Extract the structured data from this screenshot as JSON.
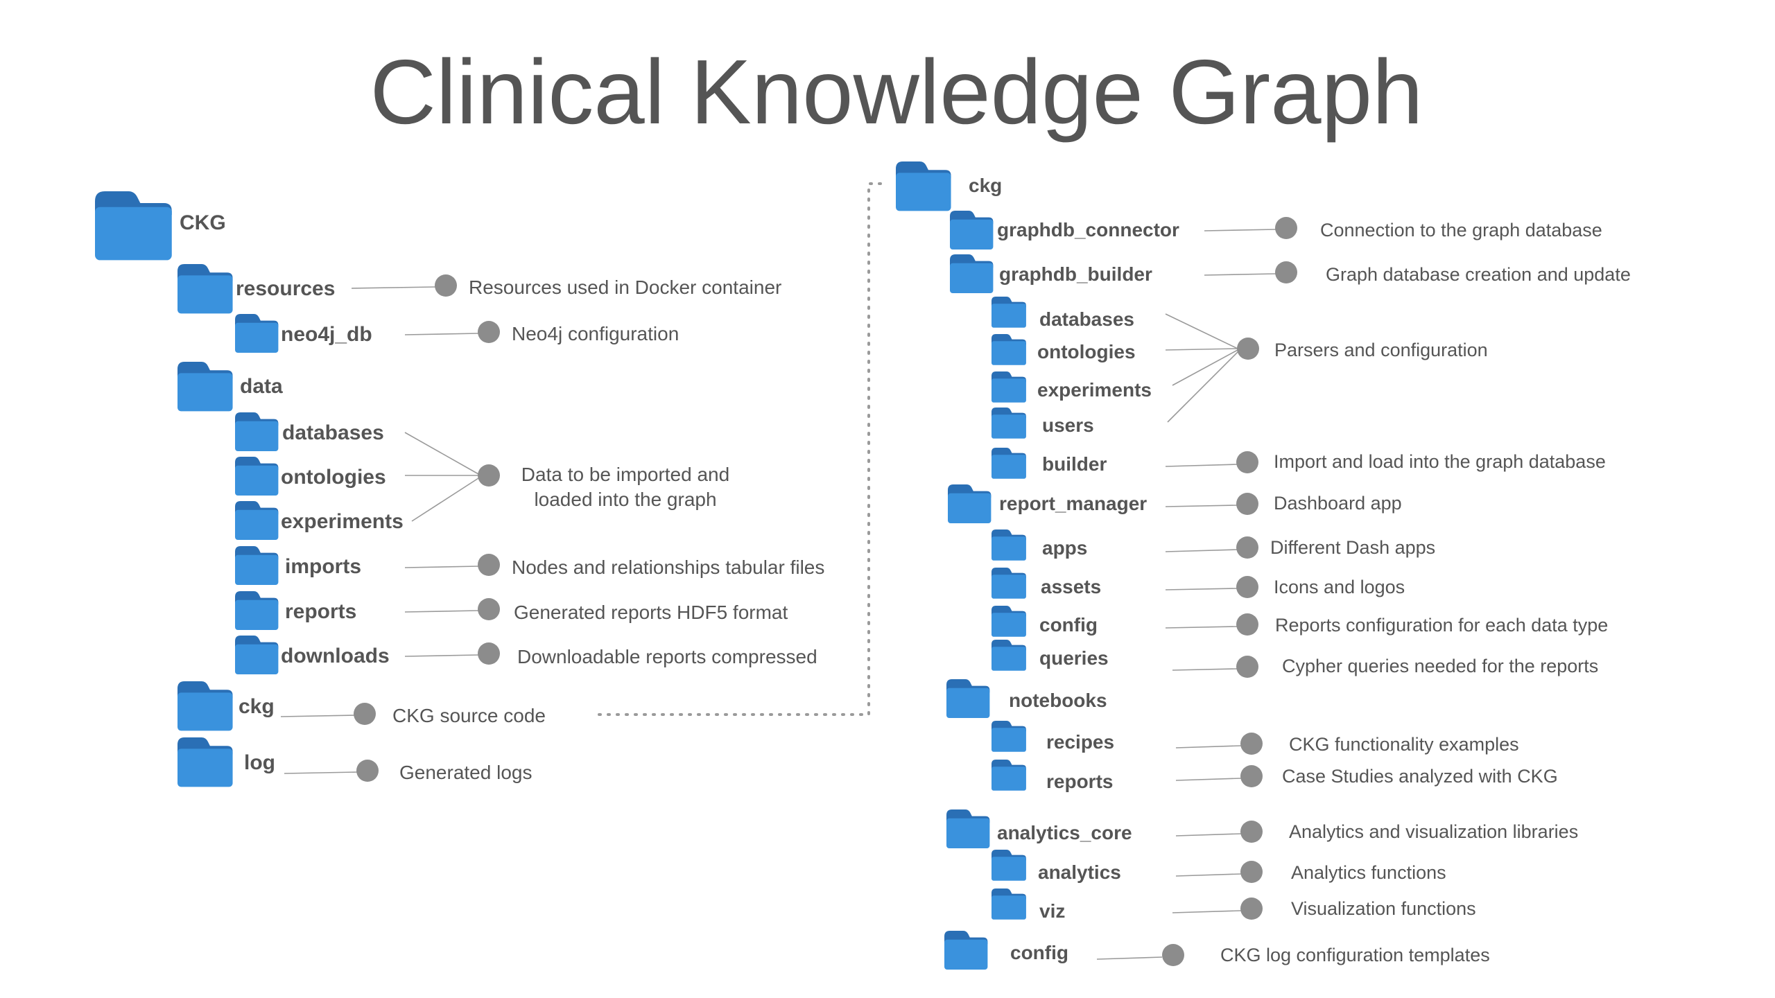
{
  "title": "Clinical Knowledge Graph",
  "colors": {
    "folder_body": "#3a92dd",
    "folder_tab": "#2a6fb5",
    "text": "#555555",
    "dot": "#8c8c8c",
    "line": "#9a9a9a"
  },
  "left_tree": {
    "root": "CKG",
    "folders": [
      {
        "label": "resources",
        "icon": "folder-icon"
      },
      {
        "label": "neo4j_db",
        "icon": "folder-icon"
      },
      {
        "label": "data",
        "icon": "folder-icon"
      },
      {
        "label": "databases",
        "icon": "folder-icon"
      },
      {
        "label": "ontologies",
        "icon": "folder-icon"
      },
      {
        "label": "experiments",
        "icon": "folder-icon"
      },
      {
        "label": "imports",
        "icon": "folder-icon"
      },
      {
        "label": "reports",
        "icon": "folder-icon"
      },
      {
        "label": "downloads",
        "icon": "folder-icon"
      },
      {
        "label": "ckg",
        "icon": "folder-icon"
      },
      {
        "label": "log",
        "icon": "folder-icon"
      }
    ],
    "descriptions": [
      "Resources used in Docker container",
      "Neo4j configuration",
      "Data to be imported and",
      "loaded into the graph",
      "Nodes and relationships tabular files",
      "Generated reports HDF5 format",
      "Downloadable reports compressed",
      "CKG source code",
      "Generated logs"
    ]
  },
  "right_tree": {
    "root": "ckg",
    "folders": [
      {
        "label": "graphdb_connector",
        "icon": "folder-icon"
      },
      {
        "label": "graphdb_builder",
        "icon": "folder-icon"
      },
      {
        "label": "databases",
        "icon": "folder-icon"
      },
      {
        "label": "ontologies",
        "icon": "folder-icon"
      },
      {
        "label": "experiments",
        "icon": "folder-icon"
      },
      {
        "label": "users",
        "icon": "folder-icon"
      },
      {
        "label": "builder",
        "icon": "folder-icon"
      },
      {
        "label": "report_manager",
        "icon": "folder-icon"
      },
      {
        "label": "apps",
        "icon": "folder-icon"
      },
      {
        "label": "assets",
        "icon": "folder-icon"
      },
      {
        "label": "config",
        "icon": "folder-icon"
      },
      {
        "label": "queries",
        "icon": "folder-icon"
      },
      {
        "label": "notebooks",
        "icon": "folder-icon"
      },
      {
        "label": "recipes",
        "icon": "folder-icon"
      },
      {
        "label": "reports",
        "icon": "folder-icon"
      },
      {
        "label": "analytics_core",
        "icon": "folder-icon"
      },
      {
        "label": "analytics",
        "icon": "folder-icon"
      },
      {
        "label": "viz",
        "icon": "folder-icon"
      },
      {
        "label": "config",
        "icon": "folder-icon"
      }
    ],
    "descriptions": [
      "Connection to the graph database",
      "Graph database creation and update",
      "Parsers and configuration",
      "Import and load into the graph database",
      "Dashboard app",
      "Different Dash apps",
      "Icons and logos",
      "Reports configuration for each data type",
      "Cypher queries needed for the reports",
      "CKG functionality examples",
      "Case Studies analyzed with CKG",
      "Analytics and visualization libraries",
      "Analytics functions",
      "Visualization functions",
      "CKG log configuration templates"
    ]
  }
}
